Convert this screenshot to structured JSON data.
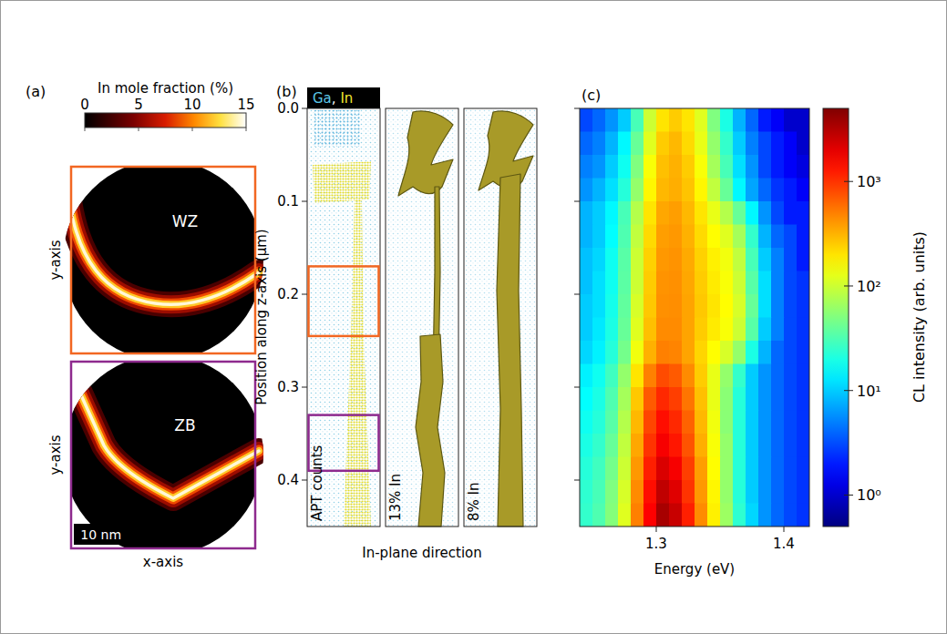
{
  "chart_data": [
    {
      "type": "image",
      "panel_label": "(a)",
      "images": [
        {
          "label": "WZ",
          "color": "#f26722"
        },
        {
          "label": "ZB",
          "color": "#8e2a8e"
        }
      ],
      "xlabel": "x-axis",
      "ylabel": "y-axis",
      "xlim": [
        0,
        34
      ],
      "scale_bar": {
        "value": 10,
        "label": "10 nm"
      },
      "colorbar": {
        "title": "In mole fraction (%)",
        "lim": [
          0,
          15
        ],
        "ticks": [
          0,
          5,
          10,
          15
        ]
      }
    },
    {
      "type": "image",
      "panel_label": "(b)",
      "header": [
        {
          "text": "Ga",
          "color": "#5cc6e6"
        },
        {
          "text": ", ",
          "color": "#ffffff"
        },
        {
          "text": "In",
          "color": "#f0e830"
        }
      ],
      "strips": [
        "APT counts",
        "13% In",
        "8% In"
      ],
      "xlabel": "In-plane direction",
      "ylabel": "Position along z-axis (μm)",
      "ylim": [
        0,
        0.45
      ],
      "yticks": [
        {
          "value": 0,
          "label": "0.0"
        },
        0.1,
        0.2,
        0.3,
        0.4
      ],
      "regions": [
        {
          "range": [
            0.17,
            0.245
          ],
          "color": "#f26722"
        },
        {
          "range": [
            0.33,
            0.39
          ],
          "color": "#8e2a8e"
        }
      ]
    },
    {
      "type": "heatmap",
      "panel_label": "(c)",
      "x": [
        1.245,
        1.255,
        1.265,
        1.275,
        1.285,
        1.295,
        1.305,
        1.315,
        1.325,
        1.335,
        1.345,
        1.355,
        1.365,
        1.375,
        1.385,
        1.395,
        1.405,
        1.415
      ],
      "y": [
        0.0125,
        0.0375,
        0.0625,
        0.0875,
        0.1125,
        0.1375,
        0.1625,
        0.1875,
        0.2125,
        0.2375,
        0.2625,
        0.2875,
        0.3125,
        0.3375,
        0.3625,
        0.3875,
        0.4125,
        0.4375
      ],
      "z": [
        [
          3,
          4,
          6,
          10,
          30,
          100,
          200,
          250,
          200,
          120,
          50,
          20,
          8,
          4,
          2,
          1.5,
          1,
          1
        ],
        [
          4,
          5,
          8,
          15,
          40,
          120,
          250,
          300,
          220,
          130,
          60,
          25,
          10,
          5,
          3,
          2,
          1.5,
          1
        ],
        [
          5,
          6,
          10,
          18,
          50,
          150,
          280,
          320,
          250,
          150,
          70,
          30,
          12,
          6,
          3,
          2,
          1.5,
          1.2
        ],
        [
          6,
          8,
          12,
          22,
          60,
          170,
          300,
          330,
          270,
          170,
          90,
          40,
          15,
          7,
          4,
          2.5,
          2,
          1.5
        ],
        [
          8,
          10,
          15,
          30,
          80,
          200,
          350,
          380,
          300,
          200,
          130,
          80,
          40,
          15,
          6,
          3,
          2,
          2
        ],
        [
          8,
          10,
          16,
          32,
          90,
          220,
          380,
          400,
          320,
          220,
          160,
          120,
          70,
          25,
          8,
          4,
          3,
          2
        ],
        [
          9,
          11,
          18,
          35,
          100,
          240,
          400,
          420,
          340,
          240,
          180,
          140,
          90,
          30,
          10,
          5,
          3,
          2
        ],
        [
          9,
          12,
          18,
          36,
          100,
          250,
          420,
          430,
          350,
          250,
          190,
          150,
          100,
          35,
          12,
          5,
          3,
          2.5
        ],
        [
          10,
          12,
          19,
          38,
          110,
          260,
          430,
          440,
          360,
          260,
          200,
          160,
          110,
          40,
          12,
          5,
          3,
          2.5
        ],
        [
          10,
          13,
          20,
          40,
          120,
          280,
          450,
          450,
          360,
          250,
          190,
          150,
          100,
          35,
          10,
          5,
          3,
          2.5
        ],
        [
          11,
          14,
          22,
          45,
          140,
          320,
          500,
          480,
          360,
          230,
          160,
          110,
          60,
          20,
          8,
          4,
          3,
          2.5
        ],
        [
          14,
          18,
          28,
          60,
          200,
          500,
          800,
          700,
          450,
          250,
          130,
          60,
          25,
          10,
          6,
          4,
          3,
          2.5
        ],
        [
          16,
          20,
          32,
          70,
          260,
          700,
          1100,
          900,
          550,
          280,
          130,
          55,
          22,
          10,
          6,
          4,
          3,
          2.5
        ],
        [
          18,
          22,
          35,
          80,
          300,
          850,
          1400,
          1100,
          650,
          300,
          140,
          55,
          22,
          10,
          6,
          4,
          3,
          2.5
        ],
        [
          20,
          25,
          40,
          90,
          350,
          1000,
          1700,
          1300,
          750,
          330,
          150,
          60,
          22,
          10,
          6,
          4,
          3,
          2.5
        ],
        [
          22,
          28,
          45,
          100,
          400,
          1200,
          2200,
          1700,
          900,
          380,
          160,
          60,
          22,
          10,
          6,
          4,
          3,
          2.5
        ],
        [
          24,
          30,
          50,
          110,
          450,
          1400,
          2800,
          2100,
          1000,
          400,
          170,
          60,
          22,
          10,
          6,
          4,
          3,
          2.5
        ],
        [
          25,
          32,
          52,
          120,
          500,
          1600,
          3500,
          2600,
          1200,
          450,
          180,
          65,
          24,
          11,
          6,
          4,
          3,
          2.5
        ]
      ],
      "xlim": [
        1.24,
        1.42
      ],
      "xticks": [
        1.3,
        1.4
      ],
      "ylim": [
        0,
        0.45
      ],
      "yticks": [
        0,
        0.1,
        0.2,
        0.3,
        0.4
      ],
      "tick_labels": "x",
      "xlabel": "Energy (eV)",
      "colorbar": {
        "title": "CL intensity (arb. units)",
        "lim": [
          0.5,
          5000
        ],
        "log": true,
        "ticks": [
          {
            "value": 1,
            "label": "10⁰"
          },
          {
            "value": 10,
            "label": "10¹"
          },
          {
            "value": 100,
            "label": "10²"
          },
          {
            "value": 1000,
            "label": "10³"
          }
        ]
      }
    }
  ]
}
